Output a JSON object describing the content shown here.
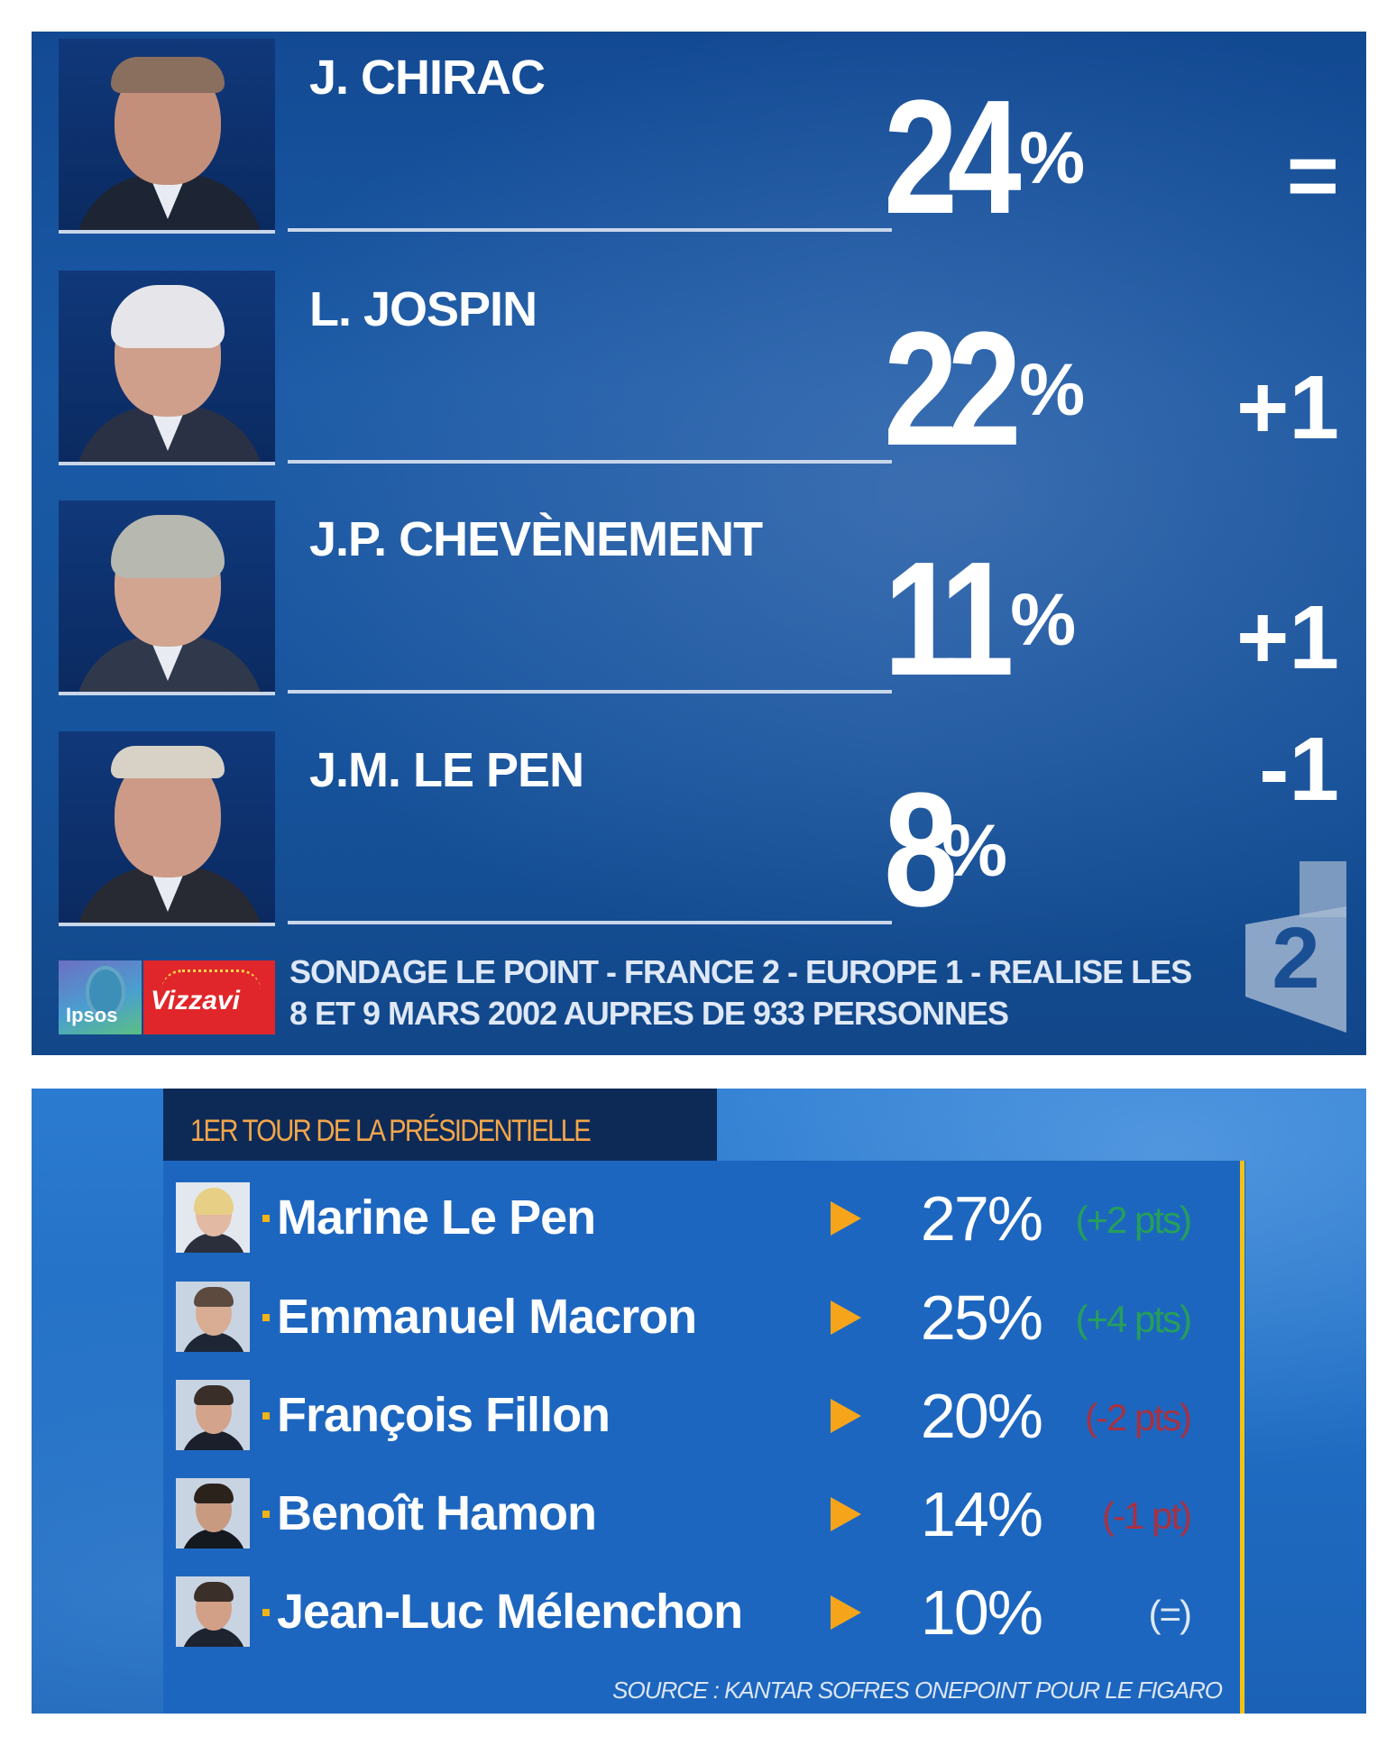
{
  "panel1": {
    "rows": [
      {
        "name": "J. CHIRAC",
        "pct": "24",
        "pct_sign": "%",
        "change": "="
      },
      {
        "name": "L. JOSPIN",
        "pct": "22",
        "pct_sign": "%",
        "change": "+1"
      },
      {
        "name": "J.P. CHEVÈNEMENT",
        "pct": "11",
        "pct_sign": "%",
        "change": "+1"
      },
      {
        "name": "J.M. LE PEN",
        "pct": "8",
        "pct_sign": "%",
        "change": "-1"
      }
    ],
    "logos": {
      "ipsos": "Ipsos",
      "vizzavi": "Vizzavi"
    },
    "source_line1": "SONDAGE LE POINT - FRANCE 2 - EUROPE 1 - REALISE LES",
    "source_line2": "8 ET 9 MARS 2002 AUPRES DE 933 PERSONNES",
    "channel_logo": "2"
  },
  "panel2": {
    "header": "1ER TOUR DE LA PRÉSIDENTIELLE",
    "rows": [
      {
        "name": "Marine Le Pen",
        "pct": "27%",
        "change": "(+2 pts)",
        "change_color": "#27a94a"
      },
      {
        "name": "Emmanuel Macron",
        "pct": "25%",
        "change": "(+4 pts)",
        "change_color": "#27a94a"
      },
      {
        "name": "François Fillon",
        "pct": "20%",
        "change": "(-2 pts)",
        "change_color": "#c0282d"
      },
      {
        "name": "Benoît Hamon",
        "pct": "14%",
        "change": "(-1 pt)",
        "change_color": "#c0282d"
      },
      {
        "name": "Jean-Luc Mélenchon",
        "pct": "10%",
        "change": "(=)",
        "change_color": "#ffffff"
      }
    ],
    "source": "SOURCE : KANTAR SOFRES ONEPOINT POUR LE FIGARO"
  }
}
